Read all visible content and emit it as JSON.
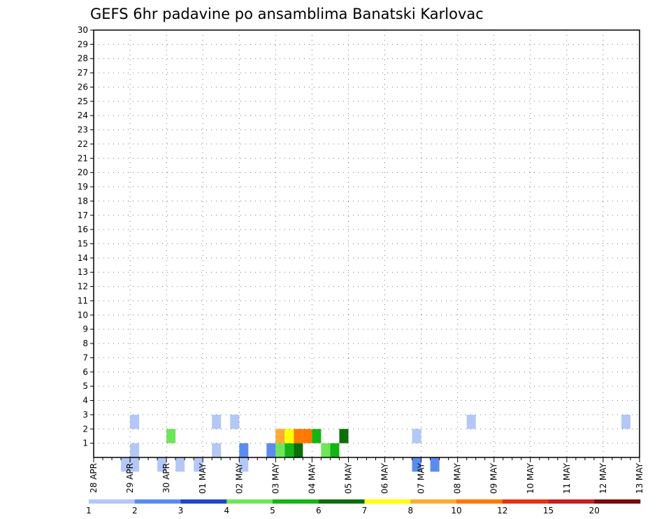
{
  "chart_data": {
    "type": "heatmap",
    "title": "GEFS 6hr padavine po ansamblima Banatski Karlovac",
    "x_tick_labels": [
      "28 APR",
      "29 APR",
      "30 APR",
      "01 MAY",
      "02 MAY",
      "03 MAY",
      "04 MAY",
      "05 MAY",
      "06 MAY",
      "07 MAY",
      "08 MAY",
      "09 MAY",
      "10 MAY",
      "11 MAY",
      "12 MAY",
      "13 MAY"
    ],
    "x_range_days": [
      0,
      15
    ],
    "x_step_hours": 6,
    "y_tick_labels": [
      "1",
      "2",
      "3",
      "4",
      "5",
      "6",
      "7",
      "8",
      "9",
      "10",
      "11",
      "12",
      "13",
      "14",
      "15",
      "16",
      "17",
      "18",
      "19",
      "20",
      "21",
      "22",
      "23",
      "24",
      "25",
      "26",
      "27",
      "28",
      "29",
      "30"
    ],
    "y_range": [
      0,
      30
    ],
    "grid": true,
    "colorbar": {
      "labels": [
        "1",
        "2",
        "3",
        "4",
        "5",
        "6",
        "7",
        "8",
        "10",
        "12",
        "15",
        "20"
      ],
      "colors": [
        "#b4c8f5",
        "#5a8cf0",
        "#1e46d2",
        "#6ee65a",
        "#14b414",
        "#0a6e0a",
        "#ffff00",
        "#ffaa32",
        "#ff7800",
        "#e63210",
        "#c81e1e",
        "#780a0a"
      ]
    },
    "cells": [
      [
        4,
        1,
        0
      ],
      [
        13,
        1,
        0
      ],
      [
        16,
        1,
        1
      ],
      [
        19,
        1,
        1
      ],
      [
        25,
        1,
        3
      ],
      [
        26,
        1,
        4
      ],
      [
        4,
        3,
        0
      ],
      [
        13,
        3,
        0
      ],
      [
        15,
        3,
        0
      ],
      [
        41,
        3,
        0
      ],
      [
        58,
        3,
        0
      ],
      [
        35,
        2,
        0
      ],
      [
        8,
        2,
        3
      ],
      [
        24,
        2,
        4
      ],
      [
        27,
        2,
        5
      ],
      [
        3,
        0,
        0
      ],
      [
        4,
        0,
        0
      ],
      [
        7,
        0,
        0
      ],
      [
        9,
        0,
        0
      ],
      [
        11,
        0,
        0
      ],
      [
        16,
        0,
        0
      ],
      [
        35,
        0,
        1
      ],
      [
        37,
        0,
        1
      ],
      [
        20,
        1,
        3
      ],
      [
        21,
        1,
        4
      ],
      [
        22,
        1,
        5
      ],
      [
        20,
        2,
        7
      ],
      [
        21,
        2,
        6
      ],
      [
        22,
        2,
        8
      ],
      [
        23,
        2,
        8
      ]
    ]
  }
}
